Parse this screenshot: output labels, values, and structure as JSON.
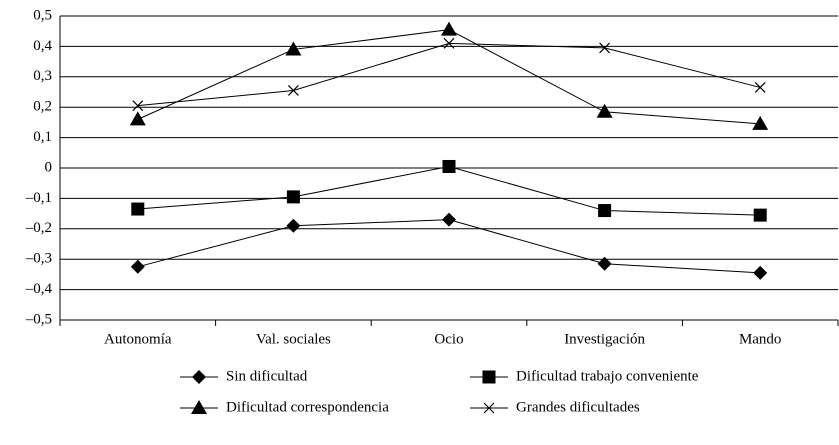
{
  "chart_data": {
    "type": "line",
    "categories": [
      "Autonomía",
      "Val. sociales",
      "Ocio",
      "Investigación",
      "Mando"
    ],
    "series": [
      {
        "name": "Sin dificultad",
        "color": "#000000",
        "marker": "diamond",
        "values": [
          -0.325,
          -0.19,
          -0.17,
          -0.315,
          -0.345
        ]
      },
      {
        "name": "Dificultad trabajo conveniente",
        "color": "#000000",
        "marker": "square",
        "values": [
          -0.135,
          -0.095,
          0.005,
          -0.14,
          -0.155
        ]
      },
      {
        "name": "Dificultad correspondencia",
        "color": "#000000",
        "marker": "triangle",
        "values": [
          0.16,
          0.39,
          0.455,
          0.185,
          0.145
        ]
      },
      {
        "name": "Grandes dificultades",
        "color": "#000000",
        "marker": "x",
        "values": [
          0.205,
          0.255,
          0.41,
          0.395,
          0.265
        ]
      }
    ],
    "ylim": [
      -0.5,
      0.5
    ],
    "yticks": [
      {
        "value": 0.5,
        "label": "0,5"
      },
      {
        "value": 0.4,
        "label": "0,4"
      },
      {
        "value": 0.3,
        "label": "0,3"
      },
      {
        "value": 0.2,
        "label": "0,2"
      },
      {
        "value": 0.1,
        "label": "0,1"
      },
      0,
      {
        "value": -0.1,
        "label": "–0,1"
      },
      {
        "value": -0.2,
        "label": "–0,2"
      },
      {
        "value": -0.3,
        "label": "–0,3"
      },
      {
        "value": -0.4,
        "label": "–0,4"
      },
      {
        "value": -0.5,
        "label": "–0,5"
      }
    ],
    "grid": true,
    "legend": "bottom"
  }
}
